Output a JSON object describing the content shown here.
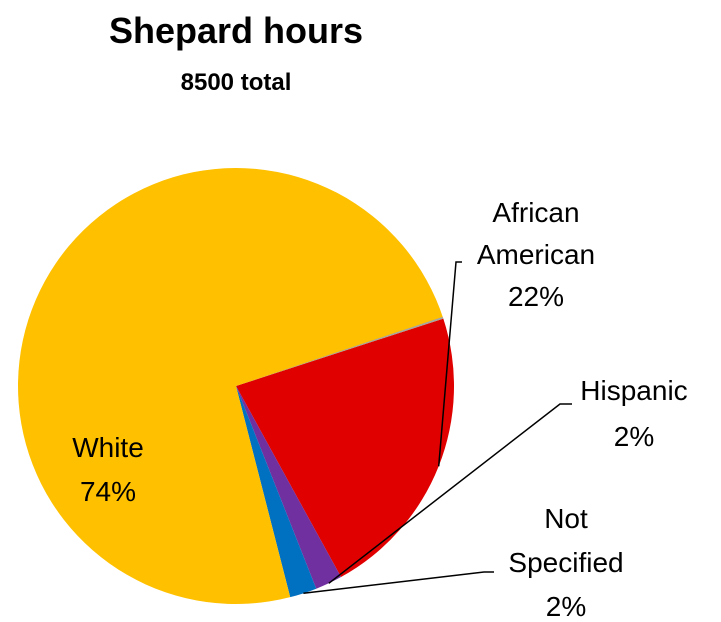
{
  "chart_data": {
    "type": "pie",
    "title": "Shepard hours",
    "subtitle": "8500 total",
    "slices": [
      {
        "name": "African American",
        "value": 22,
        "label": "22%",
        "color": "#E00000"
      },
      {
        "name": "Hispanic",
        "value": 2,
        "label": "2%",
        "color": "#7030A0"
      },
      {
        "name": "Not Specified",
        "value": 2,
        "label": "2%",
        "color": "#0070C0"
      },
      {
        "name": "White",
        "value": 74,
        "label": "74%",
        "color": "#FFC000"
      }
    ],
    "label_lines": {
      "african_american": [
        "African",
        "American"
      ],
      "not_specified": [
        "Not",
        "Specified"
      ]
    }
  }
}
